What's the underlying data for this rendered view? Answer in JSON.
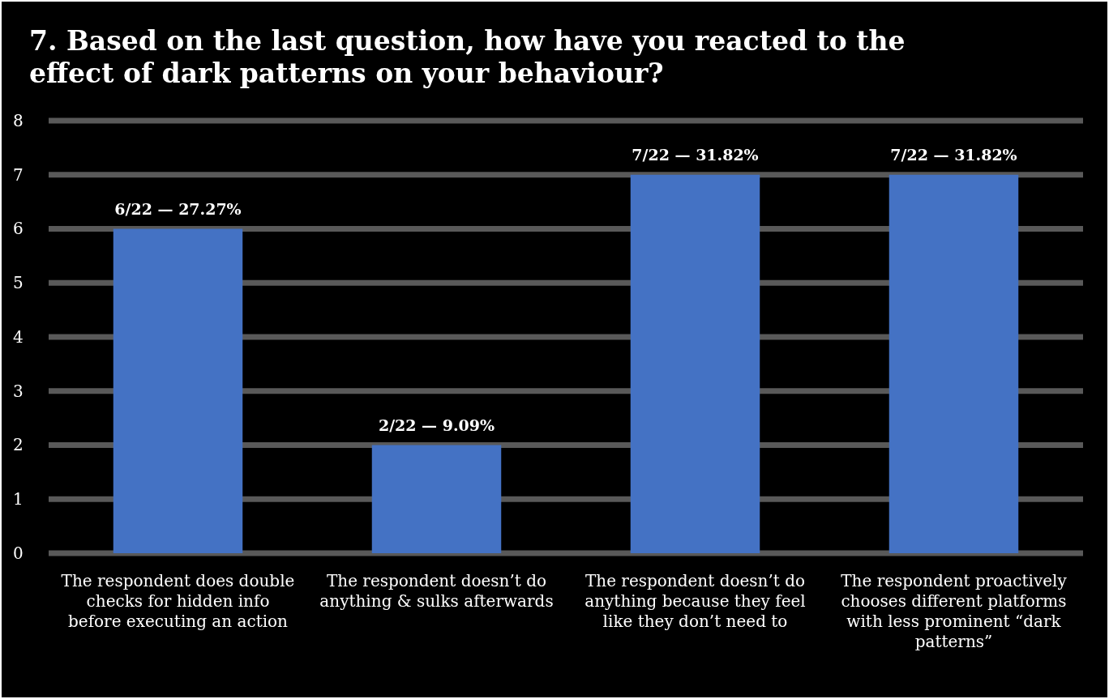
{
  "chart_data": {
    "type": "bar",
    "title": "7. Based on the last question, how have you reacted to the effect of dark patterns on your behaviour?",
    "categories": [
      "The respondent does double checks for hidden info before executing an action",
      "The respondent doesn’t do anything & sulks afterwards",
      "The respondent doesn’t do anything because they feel like they don’t need to",
      "The respondent proactively chooses different platforms with less prominent “dark patterns”"
    ],
    "values": [
      6,
      2,
      7,
      7
    ],
    "value_labels": [
      "6/22 — 27.27%",
      "2/22 — 9.09%",
      "7/22 — 31.82%",
      "7/22 — 31.82%"
    ],
    "color": "#4472c4",
    "ylim": [
      0,
      8
    ],
    "yticks": [
      0,
      1,
      2,
      3,
      4,
      5,
      6,
      7,
      8
    ],
    "grid": true
  }
}
